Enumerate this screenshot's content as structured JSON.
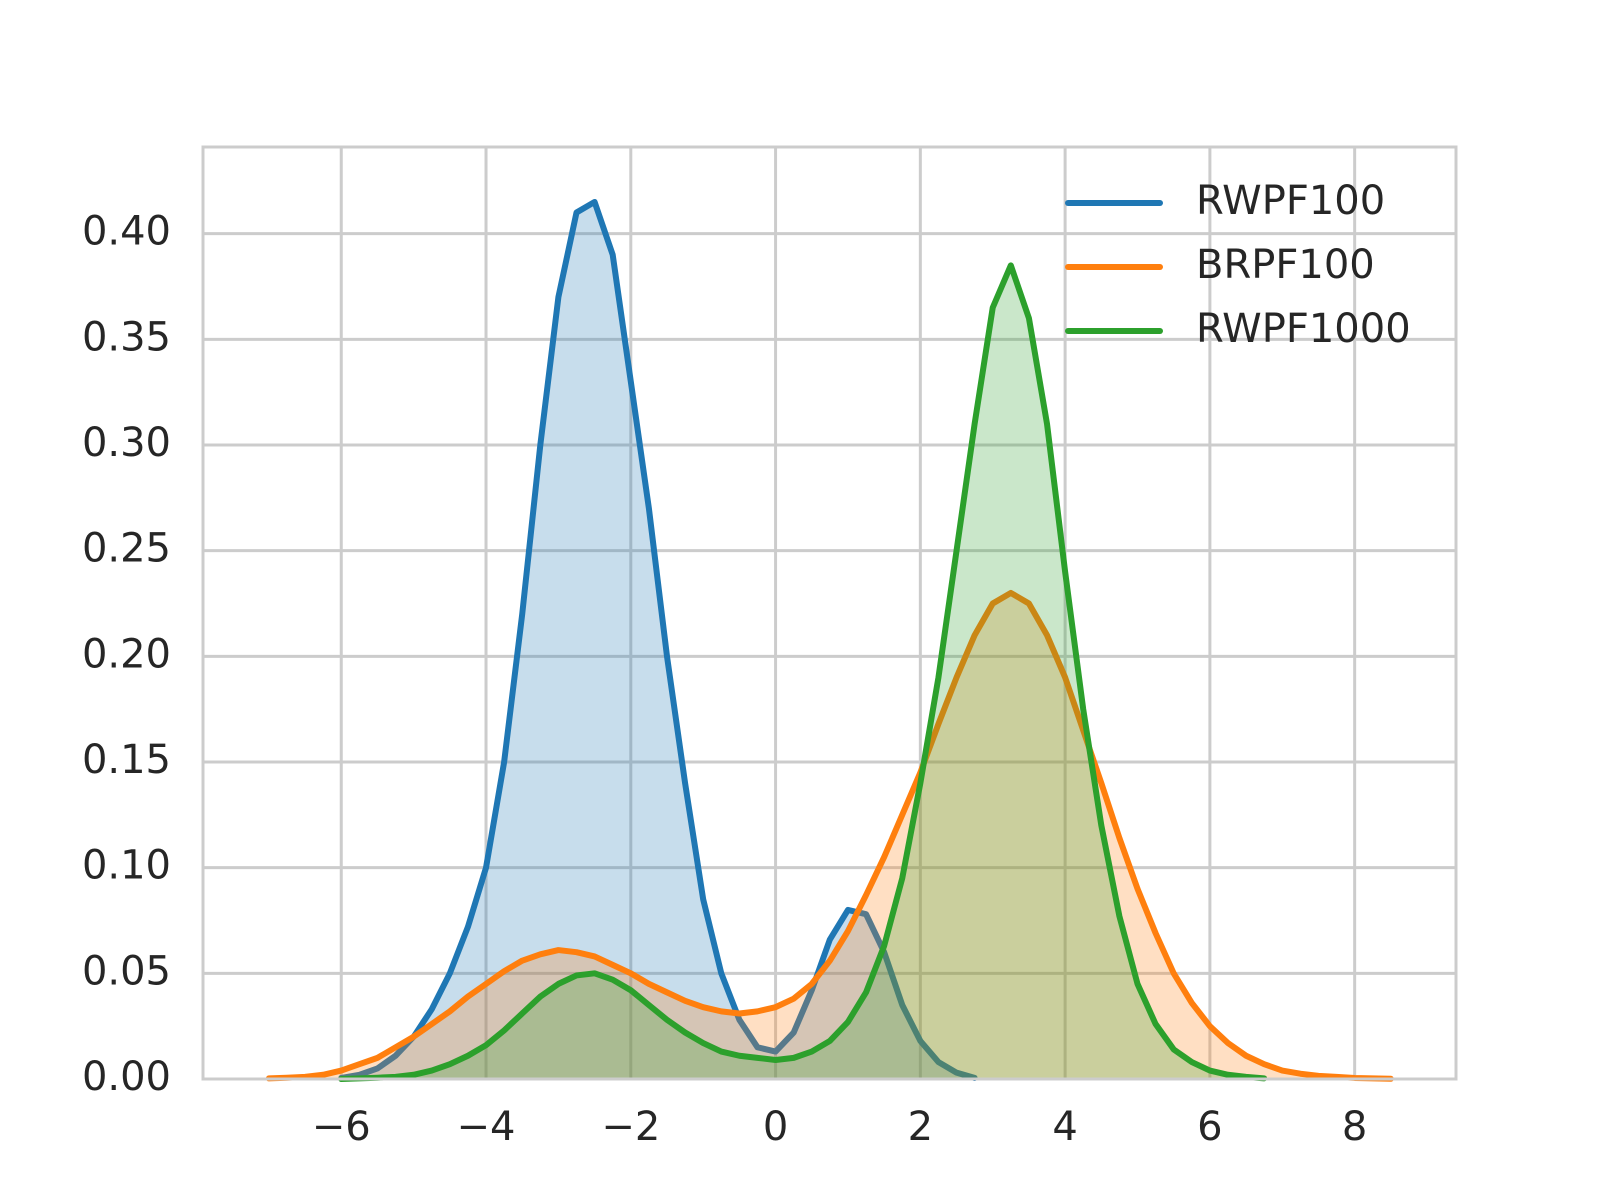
{
  "chart_data": {
    "type": "kde",
    "x": [
      -7,
      -6.75,
      -6.5,
      -6.25,
      -6,
      -5.75,
      -5.5,
      -5.25,
      -5,
      -4.75,
      -4.5,
      -4.25,
      -4,
      -3.75,
      -3.5,
      -3.25,
      -3,
      -2.75,
      -2.5,
      -2.25,
      -2,
      -1.75,
      -1.5,
      -1.25,
      -1,
      -0.75,
      -0.5,
      -0.25,
      0,
      0.25,
      0.5,
      0.75,
      1,
      1.25,
      1.5,
      1.75,
      2,
      2.25,
      2.5,
      2.75,
      3,
      3.25,
      3.5,
      3.75,
      4,
      4.25,
      4.5,
      4.75,
      5,
      5.25,
      5.5,
      5.75,
      6,
      6.25,
      6.5,
      6.75,
      7,
      7.25,
      7.5,
      7.75,
      8,
      8.25,
      8.5
    ],
    "series": [
      {
        "name": "RWPF100",
        "color": "#1f77b4",
        "values": [
          null,
          null,
          null,
          null,
          0.0005,
          0.002,
          0.005,
          0.011,
          0.02,
          0.033,
          0.05,
          0.072,
          0.1,
          0.15,
          0.22,
          0.3,
          0.37,
          0.41,
          0.415,
          0.39,
          0.33,
          0.27,
          0.2,
          0.14,
          0.085,
          0.05,
          0.028,
          0.015,
          0.013,
          0.022,
          0.042,
          0.066,
          0.08,
          0.078,
          0.06,
          0.035,
          0.018,
          0.008,
          0.003,
          0.0005,
          null,
          null,
          null,
          null,
          null,
          null,
          null,
          null,
          null,
          null,
          null,
          null,
          null,
          null,
          null,
          null,
          null,
          null,
          null,
          null,
          null,
          null,
          null
        ]
      },
      {
        "name": "BRPF100",
        "color": "#ff7f0e",
        "values": [
          0.0003,
          0.0006,
          0.001,
          0.002,
          0.004,
          0.007,
          0.01,
          0.015,
          0.02,
          0.026,
          0.032,
          0.039,
          0.045,
          0.051,
          0.056,
          0.059,
          0.061,
          0.06,
          0.058,
          0.054,
          0.05,
          0.045,
          0.041,
          0.037,
          0.034,
          0.032,
          0.031,
          0.032,
          0.034,
          0.038,
          0.045,
          0.056,
          0.07,
          0.087,
          0.105,
          0.125,
          0.145,
          0.168,
          0.19,
          0.21,
          0.225,
          0.23,
          0.225,
          0.21,
          0.19,
          0.165,
          0.14,
          0.114,
          0.09,
          0.069,
          0.05,
          0.036,
          0.025,
          0.017,
          0.011,
          0.007,
          0.004,
          0.0025,
          0.0015,
          0.001,
          0.0005,
          0.0003,
          0.0001
        ]
      },
      {
        "name": "RWPF1000",
        "color": "#2ca02c",
        "values": [
          null,
          null,
          null,
          null,
          0,
          0.0003,
          0.0006,
          0.001,
          0.002,
          0.004,
          0.007,
          0.011,
          0.016,
          0.023,
          0.031,
          0.039,
          0.045,
          0.049,
          0.05,
          0.047,
          0.042,
          0.035,
          0.028,
          0.022,
          0.017,
          0.013,
          0.011,
          0.01,
          0.009,
          0.01,
          0.013,
          0.018,
          0.027,
          0.041,
          0.063,
          0.095,
          0.14,
          0.19,
          0.25,
          0.31,
          0.365,
          0.385,
          0.36,
          0.31,
          0.24,
          0.175,
          0.12,
          0.077,
          0.045,
          0.026,
          0.014,
          0.008,
          0.004,
          0.002,
          0.001,
          0.0003,
          null,
          null,
          null,
          null,
          null,
          null,
          null
        ]
      }
    ],
    "xlim": [
      -7.91,
      9.4
    ],
    "ylim": [
      0,
      0.441
    ],
    "xticks": [
      {
        "value": -6,
        "label": "−6"
      },
      {
        "value": -4,
        "label": "−4"
      },
      {
        "value": -2,
        "label": "−2"
      },
      0,
      2,
      4,
      6,
      8
    ],
    "yticks": [
      {
        "value": 0,
        "label": "0.00"
      },
      {
        "value": 0.05,
        "label": "0.05"
      },
      {
        "value": 0.1,
        "label": "0.10"
      },
      {
        "value": 0.15,
        "label": "0.15"
      },
      {
        "value": 0.2,
        "label": "0.20"
      },
      {
        "value": 0.25,
        "label": "0.25"
      },
      {
        "value": 0.3,
        "label": "0.30"
      },
      {
        "value": 0.35,
        "label": "0.35"
      },
      {
        "value": 0.4,
        "label": "0.40"
      }
    ],
    "grid": true,
    "legend": "upper right"
  }
}
